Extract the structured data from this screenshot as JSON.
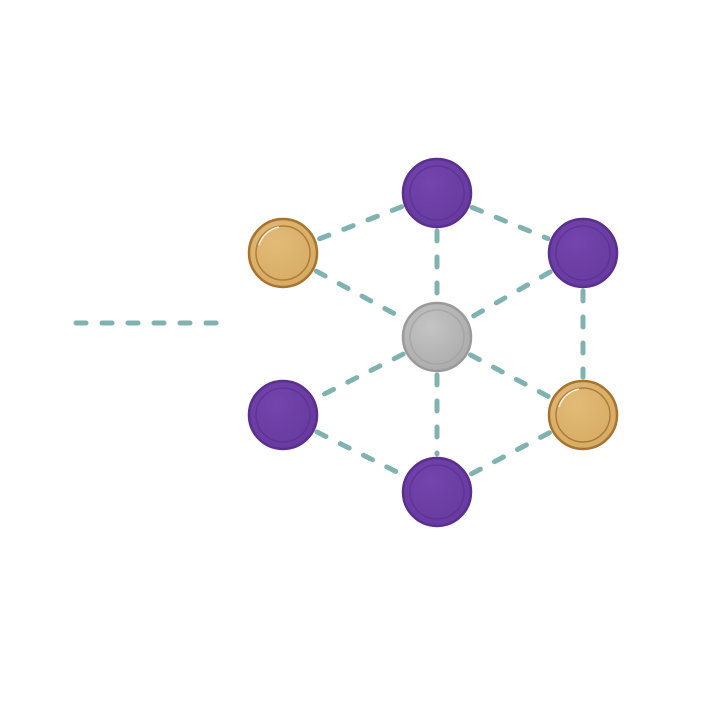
{
  "colors": {
    "background": "#ffffff",
    "bond": "#7fb2b0",
    "center_fill": "#b5b5b5",
    "center_stroke": "#9a9a9a",
    "purple_fill": "#6d3ea6",
    "purple_stroke": "#5a2f8f",
    "gold_fill": "#dcb36e",
    "gold_stroke": "#a8722f"
  },
  "nodes": [
    {
      "id": "center",
      "kind": "center"
    },
    {
      "id": "top",
      "kind": "purple"
    },
    {
      "id": "upper-right",
      "kind": "purple"
    },
    {
      "id": "upper-left",
      "kind": "gold"
    },
    {
      "id": "lower-right",
      "kind": "gold"
    },
    {
      "id": "lower-left",
      "kind": "purple"
    },
    {
      "id": "bottom",
      "kind": "purple"
    }
  ],
  "bonds": [
    [
      "top",
      "upper-left"
    ],
    [
      "top",
      "upper-right"
    ],
    [
      "top",
      "center"
    ],
    [
      "upper-left",
      "center"
    ],
    [
      "upper-right",
      "center"
    ],
    [
      "upper-right",
      "lower-right"
    ],
    [
      "center",
      "lower-left"
    ],
    [
      "center",
      "lower-right"
    ],
    [
      "center",
      "bottom"
    ],
    [
      "lower-left",
      "bottom"
    ],
    [
      "lower-right",
      "bottom"
    ]
  ]
}
